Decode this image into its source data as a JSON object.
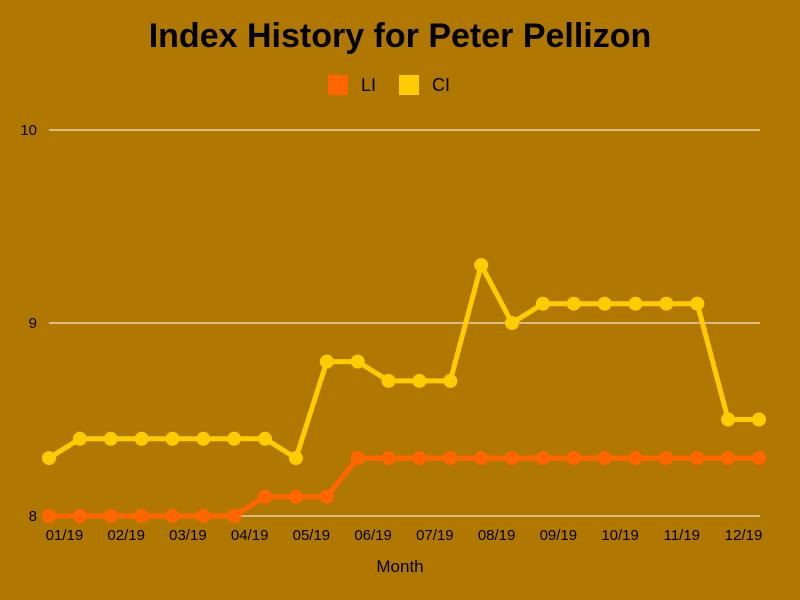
{
  "chart_data": {
    "type": "line",
    "title": "Index History for Peter Pellizon",
    "xlabel": "Month",
    "ylabel": "",
    "ylim": [
      8,
      10
    ],
    "yticks": [
      "8",
      "9",
      "10"
    ],
    "ytick_values": [
      8,
      9,
      10
    ],
    "x_tick_labels": [
      "01/19",
      "02/19",
      "03/19",
      "04/19",
      "05/19",
      "06/19",
      "07/19",
      "08/19",
      "09/19",
      "10/19",
      "11/19",
      "12/19"
    ],
    "legend": "top-center",
    "grid": true,
    "series": [
      {
        "name": "LI",
        "color": "#ff6600",
        "values": [
          8.0,
          8.0,
          8.0,
          8.0,
          8.0,
          8.0,
          8.0,
          8.1,
          8.1,
          8.1,
          8.3,
          8.3,
          8.3,
          8.3,
          8.3,
          8.3,
          8.3,
          8.3,
          8.3,
          8.3,
          8.3,
          8.3,
          8.3,
          8.3
        ]
      },
      {
        "name": "CI",
        "color": "#ffcc00",
        "values": [
          8.3,
          8.4,
          8.4,
          8.4,
          8.4,
          8.4,
          8.4,
          8.4,
          8.3,
          8.8,
          8.8,
          8.7,
          8.7,
          8.7,
          9.3,
          9.0,
          9.1,
          9.1,
          9.1,
          9.1,
          9.1,
          9.1,
          8.5,
          8.5
        ]
      }
    ]
  }
}
